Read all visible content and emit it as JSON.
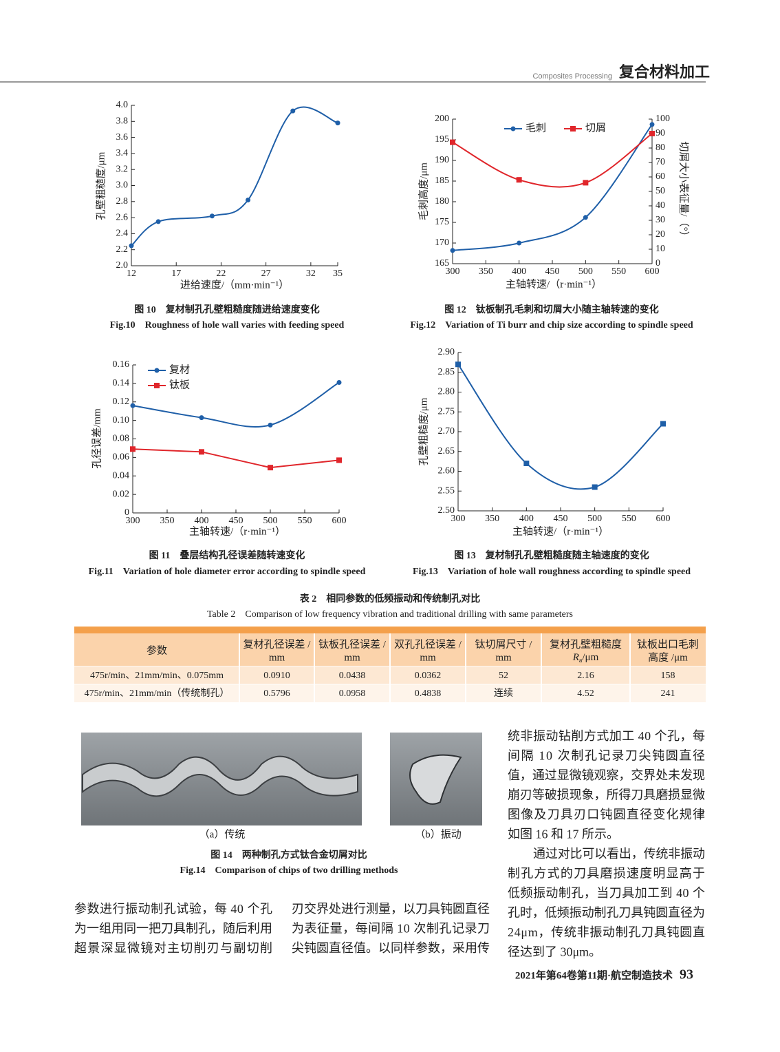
{
  "header": {
    "section_en": "Composites Processing",
    "section_cn": "复合材料加工"
  },
  "chart_data": [
    {
      "type": "line",
      "caption": "图 10　复材制孔孔壁粗糙度随进给速度变化",
      "caption_en": "Fig.10　Roughness of hole wall varies with feeding speed",
      "x_label": "进给速度/（mm·min⁻¹）",
      "y_label": "孔壁粗糙度/μm",
      "x": [
        12,
        15,
        21,
        25,
        30,
        35
      ],
      "xlim": [
        12,
        35
      ],
      "xticks": [
        12,
        17,
        22,
        27,
        32,
        35
      ],
      "ylim": [
        2.0,
        4.0
      ],
      "yticks": [
        {
          "value": 2,
          "label": "2.0"
        },
        2.2,
        2.4,
        2.6,
        2.8,
        {
          "value": 3,
          "label": "3.0"
        },
        3.2,
        3.4,
        3.6,
        3.8,
        {
          "value": 4,
          "label": "4.0"
        }
      ],
      "series": [
        {
          "color": "#1f5fa8",
          "marker": "circle",
          "smooth": true,
          "values": [
            2.25,
            2.55,
            2.62,
            2.82,
            3.93,
            3.78
          ]
        }
      ]
    },
    {
      "type": "line",
      "caption": "图 12　钛板制孔毛刺和切屑大小随主轴转速的变化",
      "caption_en": "Fig.12　Variation of Ti burr and chip size according to spindle speed",
      "x_label": "主轴转速/（r·min⁻¹）",
      "y_label": "毛刺高度/μm",
      "y2_label": "切屑大小表征量/（°）",
      "x": [
        300,
        400,
        500,
        600
      ],
      "xlim": [
        300,
        600
      ],
      "xticks": [
        300,
        350,
        400,
        450,
        500,
        550,
        600
      ],
      "ylim": [
        165,
        200
      ],
      "yticks": [
        165,
        170,
        175,
        180,
        185,
        190,
        195,
        200
      ],
      "y2lim": [
        0,
        100
      ],
      "y2ticks": [
        0,
        10,
        20,
        30,
        40,
        50,
        60,
        70,
        80,
        90,
        100
      ],
      "legend": "top",
      "series": [
        {
          "name": "毛刺",
          "color": "#1f5fa8",
          "marker": "circle",
          "smooth": true,
          "values": [
            168.2,
            170,
            176.2,
            198.7
          ]
        },
        {
          "name": "切屑",
          "color": "#e0262b",
          "marker": "square",
          "smooth": true,
          "axis": "y2",
          "values": [
            84,
            58,
            56,
            90
          ]
        }
      ]
    },
    {
      "type": "line",
      "caption": "图 11　叠层结构孔径误差随转速变化",
      "caption_en": "Fig.11　Variation of hole diameter error according to spindle speed",
      "x_label": "主轴转速/（r·min⁻¹）",
      "y_label": "孔径误差/mm",
      "x": [
        300,
        400,
        500,
        600
      ],
      "xlim": [
        300,
        600
      ],
      "xticks": [
        300,
        350,
        400,
        450,
        500,
        550,
        600
      ],
      "ylim": [
        0,
        0.16
      ],
      "yticks": [
        0,
        0.02,
        0.04,
        0.06,
        0.08,
        {
          "value": 0.1,
          "label": "0.10"
        },
        0.12,
        0.14,
        0.16
      ],
      "legend": "upper left",
      "series": [
        {
          "name": "复材",
          "color": "#1f5fa8",
          "marker": "circle",
          "smooth": true,
          "values": [
            0.116,
            0.103,
            0.095,
            0.141
          ]
        },
        {
          "name": "钛板",
          "color": "#e0262b",
          "marker": "square",
          "smooth": false,
          "values": [
            0.069,
            0.066,
            0.049,
            0.057
          ]
        }
      ]
    },
    {
      "type": "line",
      "caption": "图 13　复材制孔孔壁粗糙度随主轴速度的变化",
      "caption_en": "Fig.13　Variation of hole wall roughness according to spindle speed",
      "x_label": "主轴转速/（r·min⁻¹）",
      "y_label": "孔壁粗糙度/μm",
      "x": [
        300,
        400,
        500,
        600
      ],
      "xlim": [
        300,
        600
      ],
      "xticks": [
        300,
        350,
        400,
        450,
        500,
        550,
        600
      ],
      "ylim": [
        2.5,
        2.9
      ],
      "yticks": [
        {
          "value": 2.5,
          "label": "2.50"
        },
        {
          "value": 2.55,
          "label": "2.55"
        },
        {
          "value": 2.6,
          "label": "2.60"
        },
        {
          "value": 2.65,
          "label": "2.65"
        },
        {
          "value": 2.7,
          "label": "2.70"
        },
        {
          "value": 2.75,
          "label": "2.75"
        },
        {
          "value": 2.8,
          "label": "2.80"
        },
        {
          "value": 2.85,
          "label": "2.85"
        },
        {
          "value": 2.9,
          "label": "2.90"
        }
      ],
      "series": [
        {
          "color": "#1f5fa8",
          "marker": "square",
          "smooth": true,
          "values": [
            2.87,
            2.62,
            2.56,
            2.72
          ]
        }
      ]
    }
  ],
  "table": {
    "caption": "表 2　相同参数的低频振动和传统制孔对比",
    "caption_en": "Table 2　Comparison of low frequency vibration and traditional drilling with same parameters",
    "header": [
      [
        "参数"
      ],
      [
        "复材孔径误差 /",
        "mm"
      ],
      [
        "钛板孔径误差 /",
        "mm"
      ],
      [
        "双孔孔径误差 /",
        "mm"
      ],
      [
        "钛切屑尺寸 /",
        "mm"
      ],
      [
        "复材孔壁粗糙度",
        {
          "symbol": "R",
          "sub": "a",
          "unit": "/μm"
        }
      ],
      [
        "钛板出口毛刺",
        "高度 /μm"
      ]
    ],
    "rows": [
      [
        "475r/min、21mm/min、0.075mm",
        "0.0910",
        "0.0438",
        "0.0362",
        "52",
        "2.16",
        "158"
      ],
      [
        "475r/min、21mm/min（传统制孔）",
        "0.5796",
        "0.0958",
        "0.4838",
        "连续",
        "4.52",
        "241"
      ]
    ]
  },
  "figure14": {
    "label_a": "（a）传统",
    "label_b": "（b）振动",
    "caption": "图 14　两种制孔方式钛合金切屑对比",
    "caption_en": "Fig.14　Comparison of chips of two drilling methods"
  },
  "body": {
    "left": [
      "参数进行振动制孔试验，每 40 个孔",
      "为一组用同一把刀具制孔，随后利用",
      "超景深显微镜对主切削刃与副切削"
    ],
    "middle": [
      "刃交界处进行测量，以刀具钝圆直径",
      "为表征量，每间隔 10 次制孔记录刀",
      "尖钝圆直径值。以同样参数，采用传"
    ],
    "right": [
      "统非振动钻削方式加工 40 个孔，每",
      "间隔 10 次制孔记录刀尖钝圆直径",
      "值，通过显微镜观察，交界处未发现",
      "崩刃等破损现象，所得刀具磨损显微",
      "图像及刀具刃口钝圆直径变化规律",
      "如图 16 和 17 所示。",
      "通过对比可以看出，传统非振动",
      "制孔方式的刀具磨损速度明显高于",
      "低频振动制孔，当刀具加工到 40 个",
      "孔时，低频振动制孔刀具钝圆直径为",
      "24μm，传统非振动制孔刀具钝圆直",
      "径达到了 30μm。"
    ]
  },
  "footer": {
    "journal": "2021年第64卷第11期·航空制造技术",
    "page": "93"
  }
}
